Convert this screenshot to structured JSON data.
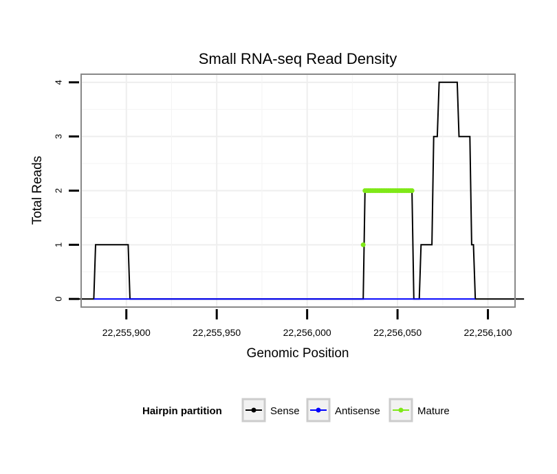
{
  "chart_data": {
    "type": "line",
    "title": "Small RNA-seq Read Density",
    "xlabel": "Genomic Position",
    "ylabel": "Total Reads",
    "xlim": [
      22255875,
      22256115
    ],
    "ylim": [
      -0.15,
      4.15
    ],
    "x_ticks": [
      22255900,
      22255950,
      22256000,
      22256050,
      22256100
    ],
    "x_tick_labels": [
      "22,255,900",
      "22,255,950",
      "22,256,000",
      "22,256,050",
      "22,256,100"
    ],
    "y_ticks": [
      0,
      1,
      2,
      3,
      4
    ],
    "y_tick_labels": [
      "0",
      "1",
      "2",
      "3",
      "4"
    ],
    "grid": true,
    "legend": {
      "title": "Hairpin partition",
      "position": "bottom",
      "entries": [
        "Sense",
        "Antisense",
        "Mature"
      ]
    },
    "series": [
      {
        "name": "Sense",
        "color": "#000000",
        "x": [
          22255872,
          22255882,
          22255883,
          22255901,
          22255902,
          22256031,
          22256032,
          22256058,
          22256059,
          22256062,
          22256063,
          22256069,
          22256070,
          22256072,
          22256073,
          22256083,
          22256084,
          22256090,
          22256091,
          22256092,
          22256093,
          22256120
        ],
        "y": [
          0,
          0,
          1,
          1,
          0,
          0,
          2,
          2,
          0,
          0,
          1,
          1,
          3,
          3,
          4,
          4,
          3,
          3,
          1,
          1,
          0,
          0
        ]
      },
      {
        "name": "Antisense",
        "color": "#0000ff",
        "x": [
          22255882,
          22256093
        ],
        "y": [
          0,
          0
        ]
      },
      {
        "name": "Mature",
        "color": "#7fe817",
        "x": [
          22256031,
          22256032,
          22256033,
          22256034,
          22256035,
          22256036,
          22256037,
          22256038,
          22256039,
          22256040,
          22256041,
          22256042,
          22256043,
          22256044,
          22256045,
          22256046,
          22256047,
          22256048,
          22256049,
          22256050,
          22256051,
          22256052,
          22256053,
          22256054,
          22256055,
          22256056,
          22256057,
          22256058
        ],
        "y": [
          1,
          2,
          2,
          2,
          2,
          2,
          2,
          2,
          2,
          2,
          2,
          2,
          2,
          2,
          2,
          2,
          2,
          2,
          2,
          2,
          2,
          2,
          2,
          2,
          2,
          2,
          2,
          2
        ]
      }
    ]
  }
}
